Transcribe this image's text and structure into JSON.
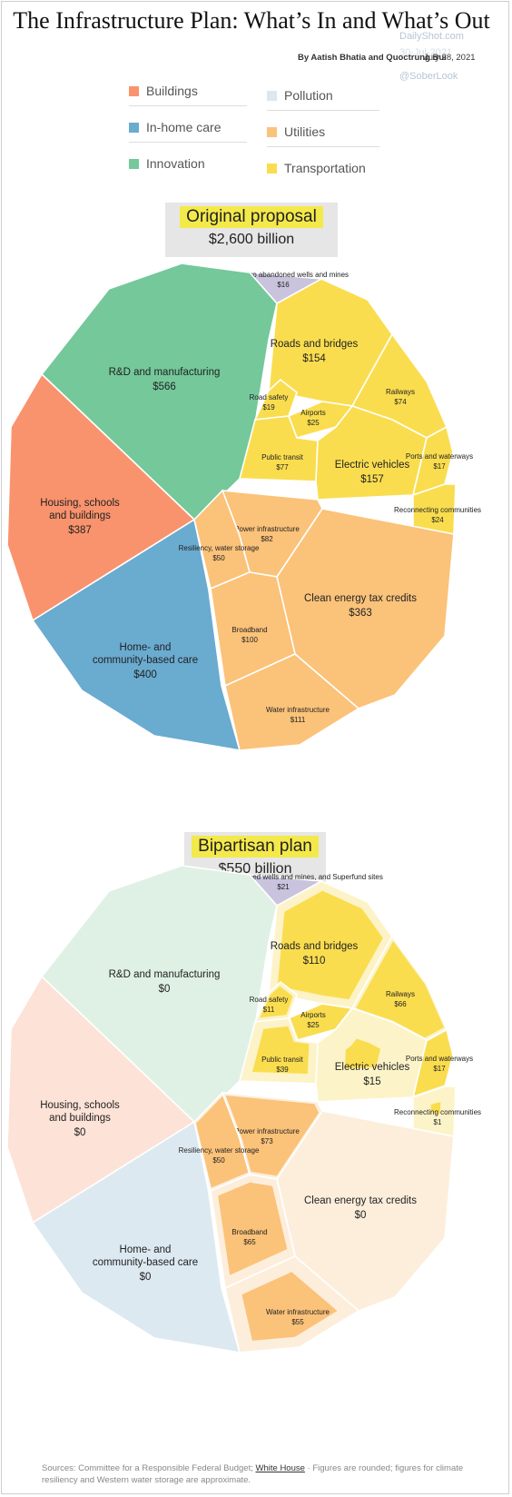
{
  "title": "The Infrastructure Plan: What’s In and What’s Out",
  "byline": "By Aatish Bhatia and Quoctrung Bui",
  "date": "July 28, 2021",
  "watermark": {
    "site": "DailyShot.com",
    "date": "30-Jul-2021",
    "handle": "@SoberLook"
  },
  "legend": [
    {
      "label": "Buildings",
      "color": "#f9936d"
    },
    {
      "label": "In-home care",
      "color": "#6aabd0"
    },
    {
      "label": "Innovation",
      "color": "#74c89a"
    },
    {
      "label": "Pollution",
      "color": "#dfe6ef"
    },
    {
      "label": "Utilities",
      "color": "#fbc279"
    },
    {
      "label": "Transportation",
      "color": "#fadd4f"
    }
  ],
  "plans": [
    {
      "name": "Original proposal",
      "total": "$2,600 billion"
    },
    {
      "name": "Bipartisan plan",
      "total": "$550 billion"
    }
  ],
  "chart_data": [
    {
      "type": "treemap",
      "title": "Original proposal",
      "total": "$2,600 billion",
      "items": [
        {
          "label": "Cleaning up abandoned wells and mines",
          "value": 16,
          "display": "$16",
          "category": "Pollution"
        },
        {
          "label": "R&D and manufacturing",
          "value": 566,
          "display": "$566",
          "category": "Innovation"
        },
        {
          "label": "Housing, schools and buildings",
          "value": 387,
          "display": "$387",
          "category": "Buildings"
        },
        {
          "label": "Home- and community-based care",
          "value": 400,
          "display": "$400",
          "category": "In-home care"
        },
        {
          "label": "Roads and bridges",
          "value": 154,
          "display": "$154",
          "category": "Transportation"
        },
        {
          "label": "Railways",
          "value": 74,
          "display": "$74",
          "category": "Transportation"
        },
        {
          "label": "Road safety",
          "value": 19,
          "display": "$19",
          "category": "Transportation"
        },
        {
          "label": "Airports",
          "value": 25,
          "display": "$25",
          "category": "Transportation"
        },
        {
          "label": "Public transit",
          "value": 77,
          "display": "$77",
          "category": "Transportation"
        },
        {
          "label": "Electric vehicles",
          "value": 157,
          "display": "$157",
          "category": "Transportation"
        },
        {
          "label": "Ports and waterways",
          "value": 17,
          "display": "$17",
          "category": "Transportation"
        },
        {
          "label": "Reconnecting communities",
          "value": 24,
          "display": "$24",
          "category": "Transportation"
        },
        {
          "label": "Power infrastructure",
          "value": 82,
          "display": "$82",
          "category": "Utilities"
        },
        {
          "label": "Resiliency, water storage",
          "value": 50,
          "display": "$50",
          "category": "Utilities"
        },
        {
          "label": "Clean energy tax credits",
          "value": 363,
          "display": "$363",
          "category": "Utilities"
        },
        {
          "label": "Broadband",
          "value": 100,
          "display": "$100",
          "category": "Utilities"
        },
        {
          "label": "Water infrastructure",
          "value": 111,
          "display": "$111",
          "category": "Utilities"
        }
      ]
    },
    {
      "type": "treemap",
      "title": "Bipartisan plan",
      "total": "$550 billion",
      "items": [
        {
          "label": "Cleaning up abandoned wells and mines, and Superfund sites",
          "value": 21,
          "display": "$21",
          "category": "Pollution"
        },
        {
          "label": "R&D and manufacturing",
          "value": 0,
          "display": "$0",
          "category": "Innovation"
        },
        {
          "label": "Housing, schools and buildings",
          "value": 0,
          "display": "$0",
          "category": "Buildings"
        },
        {
          "label": "Home- and community-based care",
          "value": 0,
          "display": "$0",
          "category": "In-home care"
        },
        {
          "label": "Roads and bridges",
          "value": 110,
          "display": "$110",
          "category": "Transportation"
        },
        {
          "label": "Railways",
          "value": 66,
          "display": "$66",
          "category": "Transportation"
        },
        {
          "label": "Road safety",
          "value": 11,
          "display": "$11",
          "category": "Transportation"
        },
        {
          "label": "Airports",
          "value": 25,
          "display": "$25",
          "category": "Transportation"
        },
        {
          "label": "Public transit",
          "value": 39,
          "display": "$39",
          "category": "Transportation"
        },
        {
          "label": "Electric vehicles",
          "value": 15,
          "display": "$15",
          "category": "Transportation"
        },
        {
          "label": "Ports and waterways",
          "value": 17,
          "display": "$17",
          "category": "Transportation"
        },
        {
          "label": "Reconnecting communities",
          "value": 1,
          "display": "$1",
          "category": "Transportation"
        },
        {
          "label": "Power infrastructure",
          "value": 73,
          "display": "$73",
          "category": "Utilities"
        },
        {
          "label": "Resiliency, water storage",
          "value": 50,
          "display": "$50",
          "category": "Utilities"
        },
        {
          "label": "Clean energy tax credits",
          "value": 0,
          "display": "$0",
          "category": "Utilities"
        },
        {
          "label": "Broadband",
          "value": 65,
          "display": "$65",
          "category": "Utilities"
        },
        {
          "label": "Water infrastructure",
          "value": 55,
          "display": "$55",
          "category": "Utilities"
        }
      ]
    }
  ],
  "source": {
    "prefix": "Sources: Committee for a Responsible Federal Budget;",
    "link": "White House",
    "sep": "·",
    "note": "Figures are rounded; figures for climate resiliency and Western water storage are approximate."
  }
}
